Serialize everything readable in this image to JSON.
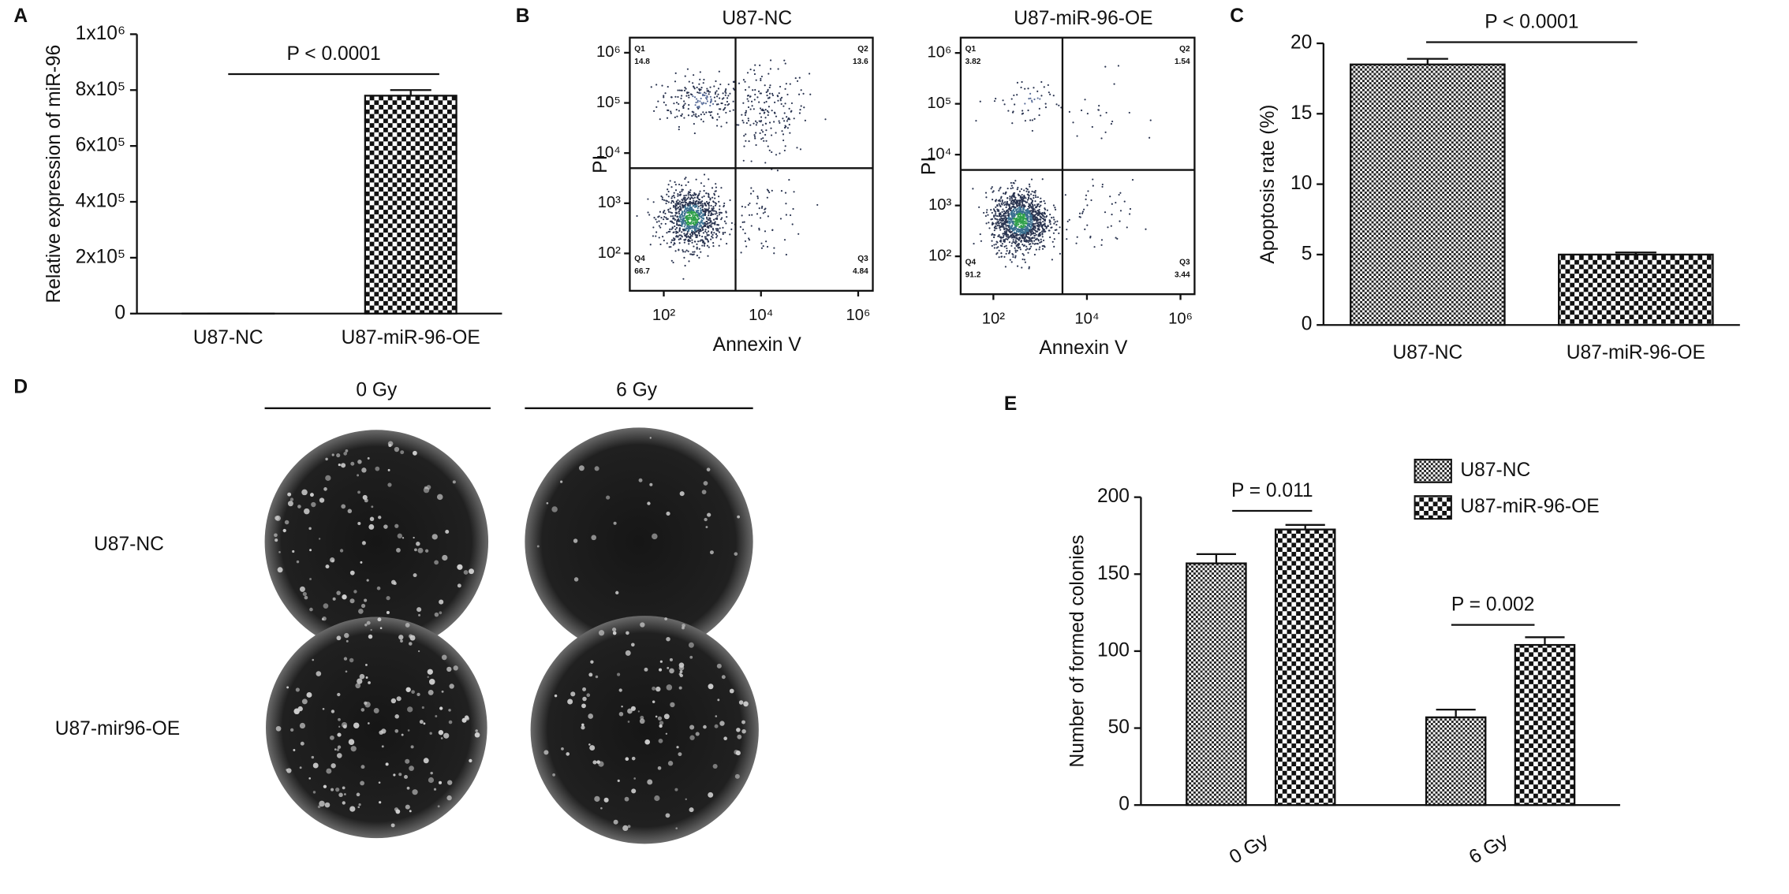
{
  "figure": {
    "panel_labels": [
      "A",
      "B",
      "C",
      "D",
      "E"
    ],
    "colony_assay": {
      "columns": [
        "0 Gy",
        "6 Gy"
      ],
      "rows": [
        "U87-NC",
        "U87-mir96-OE"
      ]
    }
  },
  "chart_data": [
    {
      "type": "bar",
      "ylabel": "Relative expression of miR-96",
      "categories": [
        "U87-NC",
        "U87-miR-96-OE"
      ],
      "values": [
        1,
        780000
      ],
      "errors": [
        0,
        20000
      ],
      "patterns": [
        "fine",
        "coarse"
      ],
      "annotations": [
        "P < 0.0001"
      ],
      "ylim": [
        0,
        1000000
      ],
      "yticks": [
        0,
        {
          "value": 200000,
          "label": "2x10⁵"
        },
        {
          "value": 400000,
          "label": "4x10⁵"
        },
        {
          "value": 600000,
          "label": "6x10⁵"
        },
        {
          "value": 800000,
          "label": "8x10⁵"
        },
        {
          "value": 1000000,
          "label": "1x10⁶"
        }
      ]
    },
    {
      "type": "flow",
      "title": "U87-NC",
      "xlabel": "Annexin V",
      "ylabel": "PI",
      "log_x": true,
      "log_y": true,
      "xlim": [
        20,
        2000000
      ],
      "ylim": [
        18,
        2000000
      ],
      "xticks": [
        {
          "value": 100,
          "label": "10²"
        },
        {
          "value": 10000,
          "label": "10⁴"
        },
        {
          "value": 1000000,
          "label": "10⁶"
        }
      ],
      "yticks": [
        {
          "value": 100,
          "label": "10²"
        },
        {
          "value": 1000,
          "label": "10³"
        },
        {
          "value": 10000,
          "label": "10⁴"
        },
        {
          "value": 100000,
          "label": "10⁵"
        },
        {
          "value": 1000000,
          "label": "10⁶"
        }
      ],
      "gate": {
        "x": 3000,
        "y": 5000
      },
      "quadrants": [
        {
          "name": "Q1",
          "value": 14.8
        },
        {
          "name": "Q2",
          "value": 13.6
        },
        {
          "name": "Q3",
          "value": 4.84
        },
        {
          "name": "Q4",
          "value": 66.7
        }
      ]
    },
    {
      "type": "flow",
      "title": "U87-miR-96-OE",
      "xlabel": "Annexin V",
      "ylabel": "PI",
      "log_x": true,
      "log_y": true,
      "xlim": [
        20,
        2000000
      ],
      "ylim": [
        18,
        2000000
      ],
      "xticks": [
        {
          "value": 100,
          "label": "10²"
        },
        {
          "value": 10000,
          "label": "10⁴"
        },
        {
          "value": 1000000,
          "label": "10⁶"
        }
      ],
      "yticks": [
        {
          "value": 100,
          "label": "10²"
        },
        {
          "value": 1000,
          "label": "10³"
        },
        {
          "value": 10000,
          "label": "10⁴"
        },
        {
          "value": 100000,
          "label": "10⁵"
        },
        {
          "value": 1000000,
          "label": "10⁶"
        }
      ],
      "gate": {
        "x": 3000,
        "y": 5000
      },
      "quadrants": [
        {
          "name": "Q1",
          "value": 3.82
        },
        {
          "name": "Q2",
          "value": 1.54
        },
        {
          "name": "Q3",
          "value": 3.44
        },
        {
          "name": "Q4",
          "value": 91.2
        }
      ]
    },
    {
      "type": "bar",
      "ylabel": "Apoptosis rate (%)",
      "categories": [
        "U87-NC",
        "U87-miR-96-OE"
      ],
      "values": [
        18.5,
        5.0
      ],
      "errors": [
        0.4,
        0.15
      ],
      "patterns": [
        "fine",
        "coarse"
      ],
      "annotations": [
        "P < 0.0001"
      ],
      "ylim": [
        0,
        20
      ],
      "yticks": [
        0,
        5,
        10,
        15,
        20
      ]
    },
    {
      "type": "bar",
      "ylabel": "Number of formed colonies",
      "categories": [
        "0 Gy",
        "6 Gy"
      ],
      "series": [
        {
          "name": "U87-NC",
          "pattern": "fine",
          "values": [
            157,
            57
          ],
          "errors": [
            6,
            5
          ]
        },
        {
          "name": "U87-miR-96-OE",
          "pattern": "coarse",
          "values": [
            179,
            104
          ],
          "errors": [
            3,
            5
          ]
        }
      ],
      "annotations": [
        "P = 0.011",
        "P = 0.002"
      ],
      "legend": "top-right",
      "ylim": [
        0,
        200
      ],
      "yticks": [
        0,
        50,
        100,
        150,
        200
      ]
    }
  ]
}
